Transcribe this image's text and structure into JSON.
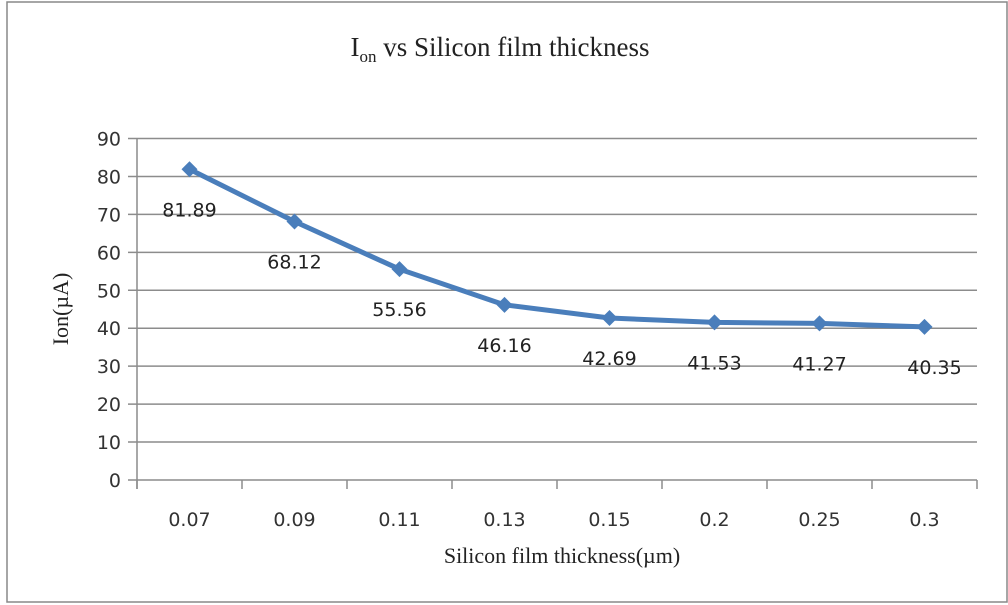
{
  "chart_data": {
    "type": "line",
    "title": "I",
    "title_sub": "on",
    "title_rest": " vs Silicon film thickness",
    "xlabel": "Silicon film thickness(µm)",
    "ylabel": "Ion(µA)",
    "categories": [
      "0.07",
      "0.09",
      "0.11",
      "0.13",
      "0.15",
      "0.2",
      "0.25",
      "0.3"
    ],
    "series": [
      {
        "name": "Ion",
        "values": [
          81.89,
          68.12,
          55.56,
          46.16,
          42.69,
          41.53,
          41.27,
          40.35
        ],
        "color": "#4a7ebb"
      }
    ],
    "data_labels": [
      "81.89",
      "68.12",
      "55.56",
      "46.16",
      "42.69",
      "41.53",
      "41.27",
      "40.35"
    ],
    "ylim": [
      0,
      90
    ],
    "yticks": [
      "0",
      "10",
      "20",
      "30",
      "40",
      "50",
      "60",
      "70",
      "80",
      "90"
    ],
    "grid": true,
    "legend": "none"
  }
}
